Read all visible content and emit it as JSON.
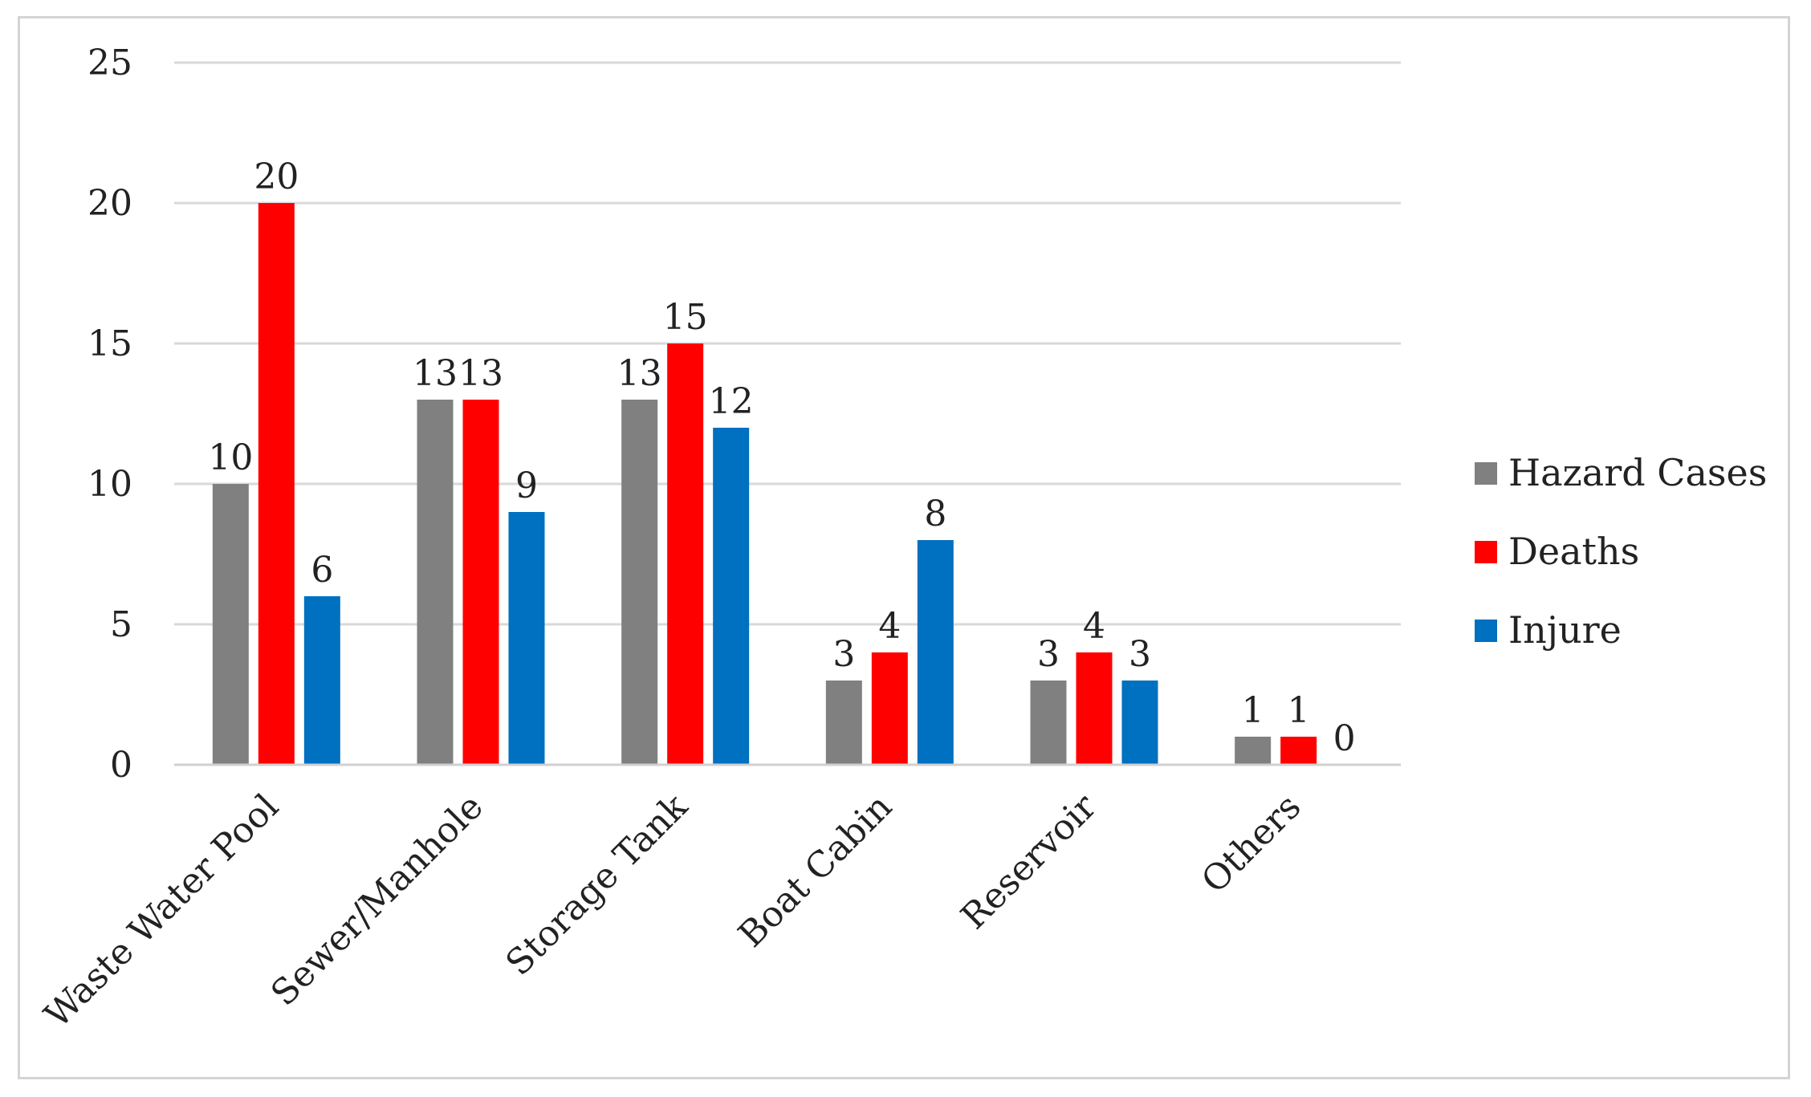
{
  "chart_data": {
    "type": "bar",
    "title": "",
    "xlabel": "",
    "ylabel": "",
    "categories": [
      "Waste Water Pool",
      "Sewer/Manhole",
      "Storage Tank",
      "Boat Cabin",
      "Reservoir",
      "Others"
    ],
    "series": [
      {
        "name": "Hazard Cases",
        "values": [
          10,
          13,
          13,
          3,
          3,
          1
        ],
        "color": "#808080"
      },
      {
        "name": "Deaths",
        "values": [
          20,
          13,
          15,
          4,
          4,
          1
        ],
        "color": "#ff0000"
      },
      {
        "name": "Injure",
        "values": [
          6,
          9,
          12,
          8,
          3,
          0
        ],
        "color": "#0070c0"
      }
    ],
    "ylim": [
      0,
      25
    ],
    "yticks": [
      0,
      5,
      10,
      15,
      20,
      25
    ],
    "grid": true,
    "gridline_color": "#d9d9d9",
    "legend_position": "right",
    "data_labels": true
  }
}
